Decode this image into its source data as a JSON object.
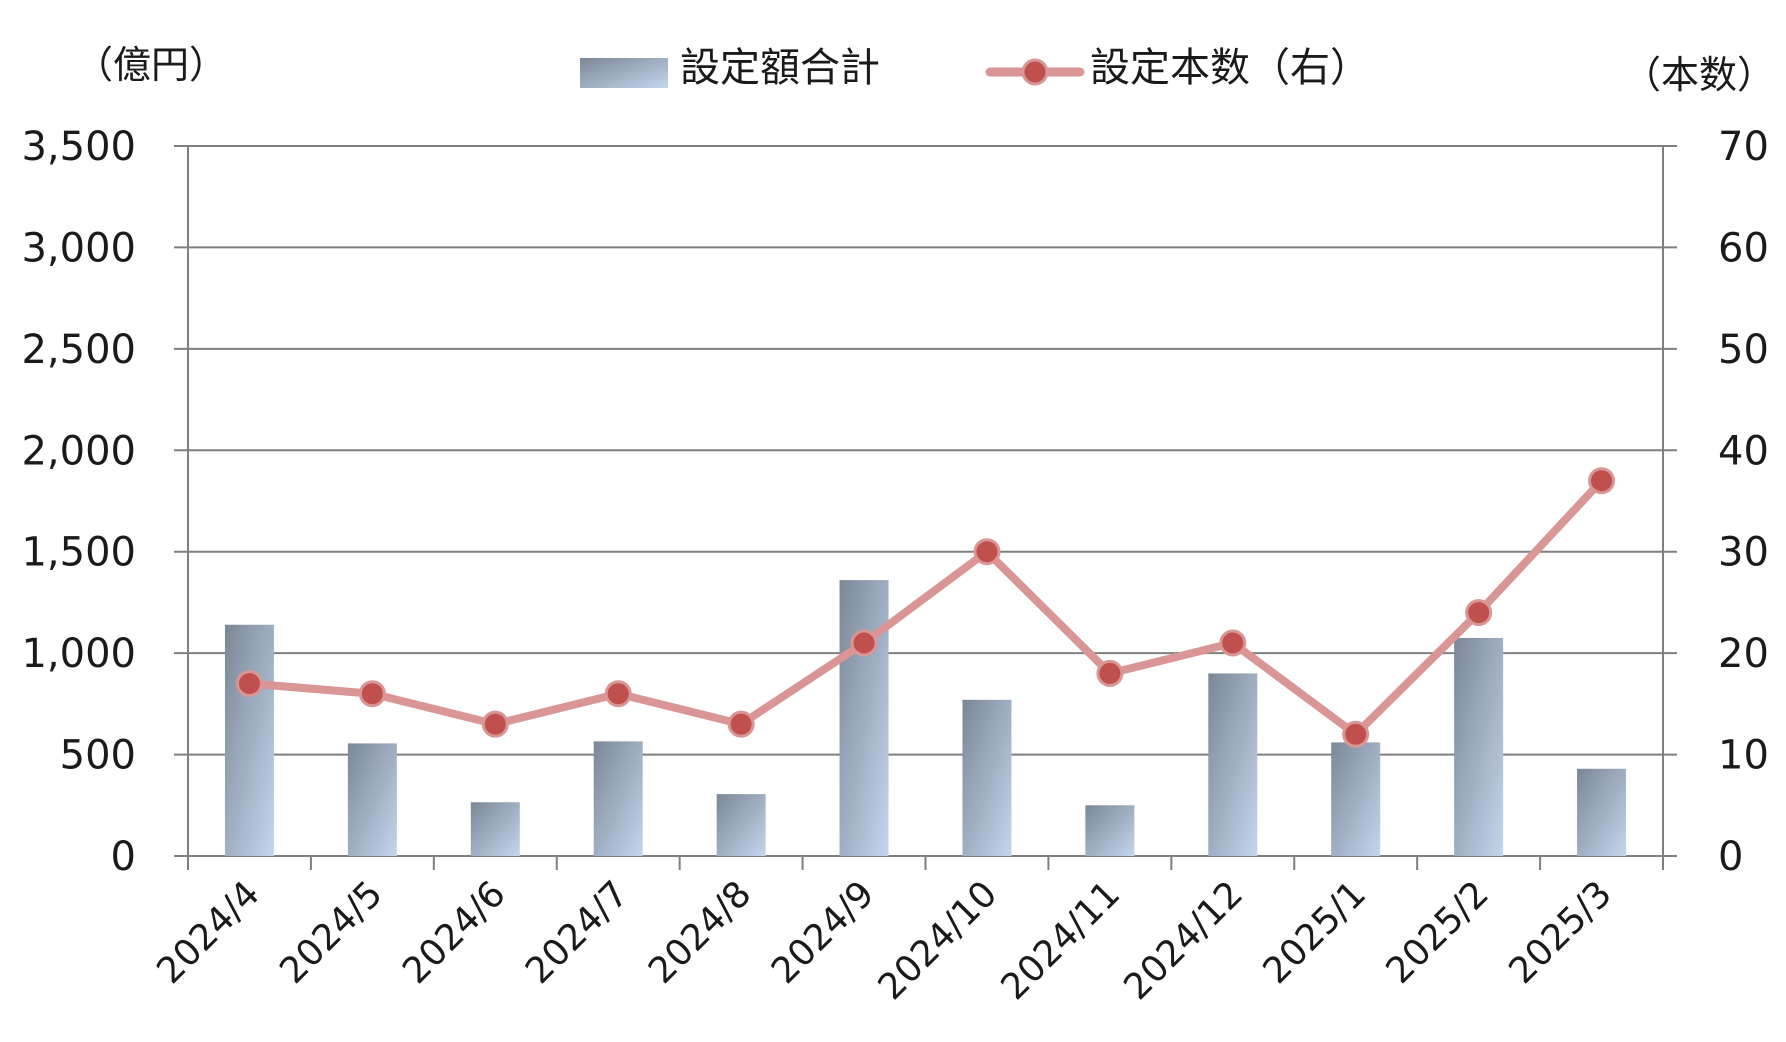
{
  "chart_data": {
    "type": "bar",
    "categories": [
      "2024/4",
      "2024/5",
      "2024/6",
      "2024/7",
      "2024/8",
      "2024/9",
      "2024/10",
      "2024/11",
      "2024/12",
      "2025/1",
      "2025/2",
      "2025/3"
    ],
    "series": [
      {
        "name": "設定額合計",
        "type": "bar",
        "axis": "left",
        "values": [
          1140,
          555,
          265,
          565,
          305,
          1360,
          770,
          250,
          900,
          560,
          1075,
          430
        ]
      },
      {
        "name": "設定本数（右）",
        "type": "line",
        "axis": "right",
        "values": [
          17,
          16,
          13,
          16,
          13,
          21,
          30,
          18,
          21,
          12,
          24,
          37
        ]
      }
    ],
    "left_axis": {
      "unit_label": "（億円）",
      "min": 0,
      "max": 3500,
      "ticks": [
        0,
        500,
        1000,
        1500,
        2000,
        2500,
        3000,
        3500
      ]
    },
    "right_axis": {
      "unit_label": "（本数）",
      "min": 0,
      "max": 70,
      "ticks": [
        0,
        10,
        20,
        30,
        40,
        50,
        60,
        70
      ]
    },
    "legend": {
      "placement": "top-center"
    },
    "grid": true,
    "colors": {
      "bar_dark": "#7b8796",
      "bar_light": "#c3d6ee",
      "line": "#d99694",
      "marker": "#c0504d",
      "grid": "#7f7f7f"
    }
  }
}
